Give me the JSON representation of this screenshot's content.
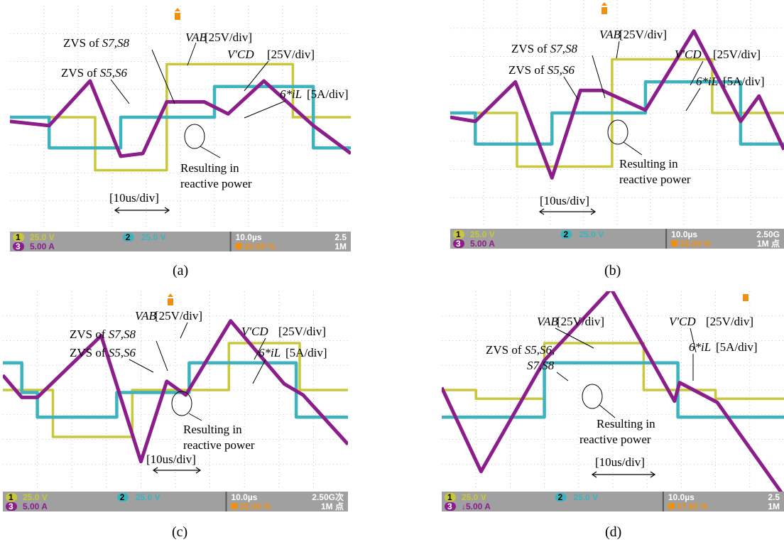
{
  "colors": {
    "vab": "#c8c83c",
    "vcd": "#3cb4c0",
    "il": "#8c1e8c",
    "status_bg": "#a0a0a0",
    "status_dark": "#585858",
    "grid": "#b8b8b8",
    "marker": "#f09010"
  },
  "icons": [
    "trigger-marker-icon",
    "time-scale-arrow-icon",
    "reactive-power-ellipse-icon"
  ],
  "chart_data": [
    {
      "type": "line",
      "caption": "(a)",
      "x_division": "10us/div",
      "grid": true,
      "ylim": [
        -4,
        4
      ],
      "xlim": [
        0,
        10
      ],
      "series": [
        {
          "name": "VAB",
          "scale": "[25V/div]",
          "x": [
            0,
            2.5,
            2.5,
            4.6,
            4.6,
            8.3,
            8.3,
            10
          ],
          "y": [
            0,
            0,
            -1.9,
            -1.9,
            1.9,
            1.9,
            0,
            0
          ]
        },
        {
          "name": "V'CD",
          "scale": "[25V/div]",
          "x": [
            0,
            1.15,
            1.15,
            3.25,
            3.25,
            6.0,
            6.0,
            8.9,
            8.9,
            10
          ],
          "y": [
            0,
            0,
            -1.1,
            -1.1,
            0,
            0,
            1.1,
            1.1,
            -1.1,
            -1.1
          ]
        },
        {
          "name": "6*iL",
          "scale": "[5A/div]",
          "x": [
            0,
            1.15,
            2.35,
            3.25,
            3.9,
            4.6,
            5.7,
            6.4,
            7.45,
            8.9,
            10
          ],
          "y": [
            -0.15,
            -0.3,
            1.3,
            -1.4,
            -1.3,
            0.55,
            0.55,
            0.12,
            1.3,
            -0.3,
            -1.3
          ]
        }
      ],
      "annotations": {
        "vab_label": "VAB",
        "vab_scale": "[25V/div]",
        "vcd_label": "V'CD",
        "vcd_scale": "[25V/div]",
        "il_label": "6*iL",
        "il_scale": "[5A/div]",
        "zvs_a_prefix": "ZVS of ",
        "zvs_a_sw": "S7,S8",
        "zvs_b_prefix": "ZVS of ",
        "zvs_b_sw": "S5,S6",
        "result_line1": "Resulting in",
        "result_line2": "reactive power",
        "time_div": "[10us/div]"
      },
      "status": {
        "ch1": "1",
        "ch1_scale": "25.0 V",
        "ch2": "2",
        "ch2_scale": "25.0 V",
        "ch3": "3",
        "ch3_scale": "5.00 A",
        "time": "10.0µs",
        "trig": "32.00 %",
        "rate": "2.5",
        "pts": "1M"
      }
    },
    {
      "type": "line",
      "caption": "(b)",
      "x_division": "10us/div",
      "grid": true,
      "ylim": [
        -4,
        4
      ],
      "xlim": [
        0,
        10
      ],
      "series": [
        {
          "name": "VAB",
          "scale": "[25V/div]",
          "x": [
            0,
            2.0,
            2.0,
            4.85,
            4.85,
            7.85,
            7.85,
            10
          ],
          "y": [
            0,
            0,
            -1.9,
            -1.9,
            1.9,
            1.9,
            0,
            0
          ]
        },
        {
          "name": "V'CD",
          "scale": "[25V/div]",
          "x": [
            0,
            0.75,
            0.75,
            3.05,
            3.05,
            5.85,
            5.85,
            8.7,
            8.7,
            10
          ],
          "y": [
            0,
            0,
            -1.1,
            -1.1,
            0,
            0,
            1.1,
            1.1,
            -1.1,
            -1.1
          ]
        },
        {
          "name": "6*iL",
          "scale": "[5A/div]",
          "x": [
            0,
            0.75,
            1.95,
            3.05,
            3.9,
            4.55,
            5.85,
            7.3,
            8.7,
            9.25,
            10
          ],
          "y": [
            -0.15,
            -0.3,
            1.1,
            -2.3,
            0.8,
            0.8,
            0.1,
            2.9,
            -0.3,
            0.6,
            -1.3
          ]
        }
      ],
      "annotations": {
        "vab_label": "VAB",
        "vab_scale": "[25V/div]",
        "vcd_label": "V'CD",
        "vcd_scale": "[25V/div]",
        "il_label": "6*iL",
        "il_scale": "[5A/div]",
        "zvs_a_prefix": "ZVS of ",
        "zvs_a_sw": "S7,S8",
        "zvs_b_prefix": "ZVS of ",
        "zvs_b_sw": "S5,S6",
        "result_line1": "Resulting in",
        "result_line2": "reactive power",
        "time_div": "[10us/div]"
      },
      "status": {
        "ch1": "1",
        "ch1_scale": "25.0 V",
        "ch2": "2",
        "ch2_scale": "25.0 V",
        "ch3": "3",
        "ch3_scale": "5.00 A",
        "time": "10.0µs",
        "trig": "32.00 %",
        "rate": "2.50G",
        "pts": "1M 点"
      }
    },
    {
      "type": "line",
      "caption": "(c)",
      "x_division": "10us/div",
      "grid": true,
      "ylim": [
        -4,
        4
      ],
      "xlim": [
        0,
        10
      ],
      "series": [
        {
          "name": "VAB",
          "scale": "[25V/div]",
          "x": [
            0,
            1.45,
            1.45,
            3.75,
            3.75,
            6.55,
            6.55,
            8.6,
            8.6,
            10
          ],
          "y": [
            0,
            0,
            -1.9,
            -1.9,
            0,
            0,
            1.9,
            1.9,
            0,
            0
          ]
        },
        {
          "name": "V'CD",
          "scale": "[25V/div]",
          "x": [
            0,
            0.55,
            0.55,
            1.0,
            1.0,
            3.3,
            3.3,
            5.4,
            5.4,
            8.5,
            8.5,
            10
          ],
          "y": [
            1.1,
            1.1,
            -0.1,
            -0.1,
            -1.1,
            -1.1,
            -0.1,
            -0.1,
            1.1,
            1.1,
            -1.1,
            -1.1
          ]
        },
        {
          "name": "6*iL",
          "scale": "[5A/div]",
          "x": [
            0,
            0.55,
            1.0,
            2.85,
            4.0,
            4.75,
            5.3,
            6.6,
            8.15,
            8.7,
            10
          ],
          "y": [
            0.6,
            -0.3,
            -0.3,
            2.2,
            -2.9,
            0.35,
            -0.2,
            2.8,
            0.25,
            -0.2,
            -2.2
          ]
        }
      ],
      "annotations": {
        "vab_label": "VAB",
        "vab_scale": "[25V/div]",
        "vcd_label": "V'CD",
        "vcd_scale": "[25V/div]",
        "il_label": "6*iL",
        "il_scale": "[5A/div]",
        "zvs_a_prefix": "ZVS of ",
        "zvs_a_sw": "S7,S8",
        "zvs_b_prefix": "ZVS of ",
        "zvs_b_sw": "S5,S6",
        "result_line1": "Resulting in",
        "result_line2": "reactive power",
        "time_div": "[10us/div]"
      },
      "status": {
        "ch1": "1",
        "ch1_scale": "25.0 V",
        "ch2": "2",
        "ch2_scale": "25.0 V",
        "ch3": "3",
        "ch3_scale": "5.00 A",
        "time": "10.0µs",
        "trig": "32.00 %",
        "rate": "2.50G次",
        "pts": "1M 点"
      }
    },
    {
      "type": "line",
      "caption": "(d)",
      "x_division": "10us/div",
      "grid": true,
      "ylim": [
        -4,
        4
      ],
      "xlim": [
        0,
        10
      ],
      "series": [
        {
          "name": "VAB",
          "scale": "[25V/div]",
          "x": [
            0,
            1.0,
            1.0,
            3.0,
            3.0,
            5.9,
            5.9,
            8.0,
            8.0,
            10
          ],
          "y": [
            0,
            0,
            -0.35,
            -0.35,
            1.9,
            1.9,
            0,
            0,
            -0.35,
            -0.35
          ]
        },
        {
          "name": "V'CD",
          "scale": "[25V/div]",
          "x": [
            0,
            1.75,
            1.75,
            3.0,
            3.0,
            6.15,
            6.15,
            6.9,
            6.9,
            10
          ],
          "y": [
            -1.1,
            -1.1,
            -1.1,
            -1.1,
            1.1,
            1.1,
            1.1,
            1.1,
            -1.1,
            -1.1
          ]
        },
        {
          "name": "6*iL",
          "scale": "[5A/div]",
          "x": [
            0,
            1.15,
            3.0,
            4.95,
            6.8,
            6.95,
            8.05,
            10
          ],
          "y": [
            0.1,
            -3.3,
            1.2,
            4.1,
            -0.45,
            0.3,
            -0.5,
            -4.3
          ]
        }
      ],
      "annotations": {
        "vab_label": "VAB",
        "vab_scale": "[25V/div]",
        "vcd_label": "V'CD",
        "vcd_scale": "[25V/div]",
        "il_label": "6*iL",
        "il_scale": "[5A/div]",
        "zvs_a_prefix": "ZVS of ",
        "zvs_a_sw": "S5,S6,",
        "zvs_b_prefix": "",
        "zvs_b_sw": "S7,S8",
        "result_line1": "Resulting in",
        "result_line2": "reactive power",
        "time_div": "[10us/div]"
      },
      "status": {
        "ch1": "1",
        "ch1_scale": "25.0 V",
        "ch2": "2",
        "ch2_scale": "25.0 V",
        "ch3": "3",
        "ch3_scale": "↓5.00 A",
        "time": "10.0µs",
        "trig": "57.60 %",
        "rate": "2.5",
        "pts": "1M"
      }
    }
  ]
}
